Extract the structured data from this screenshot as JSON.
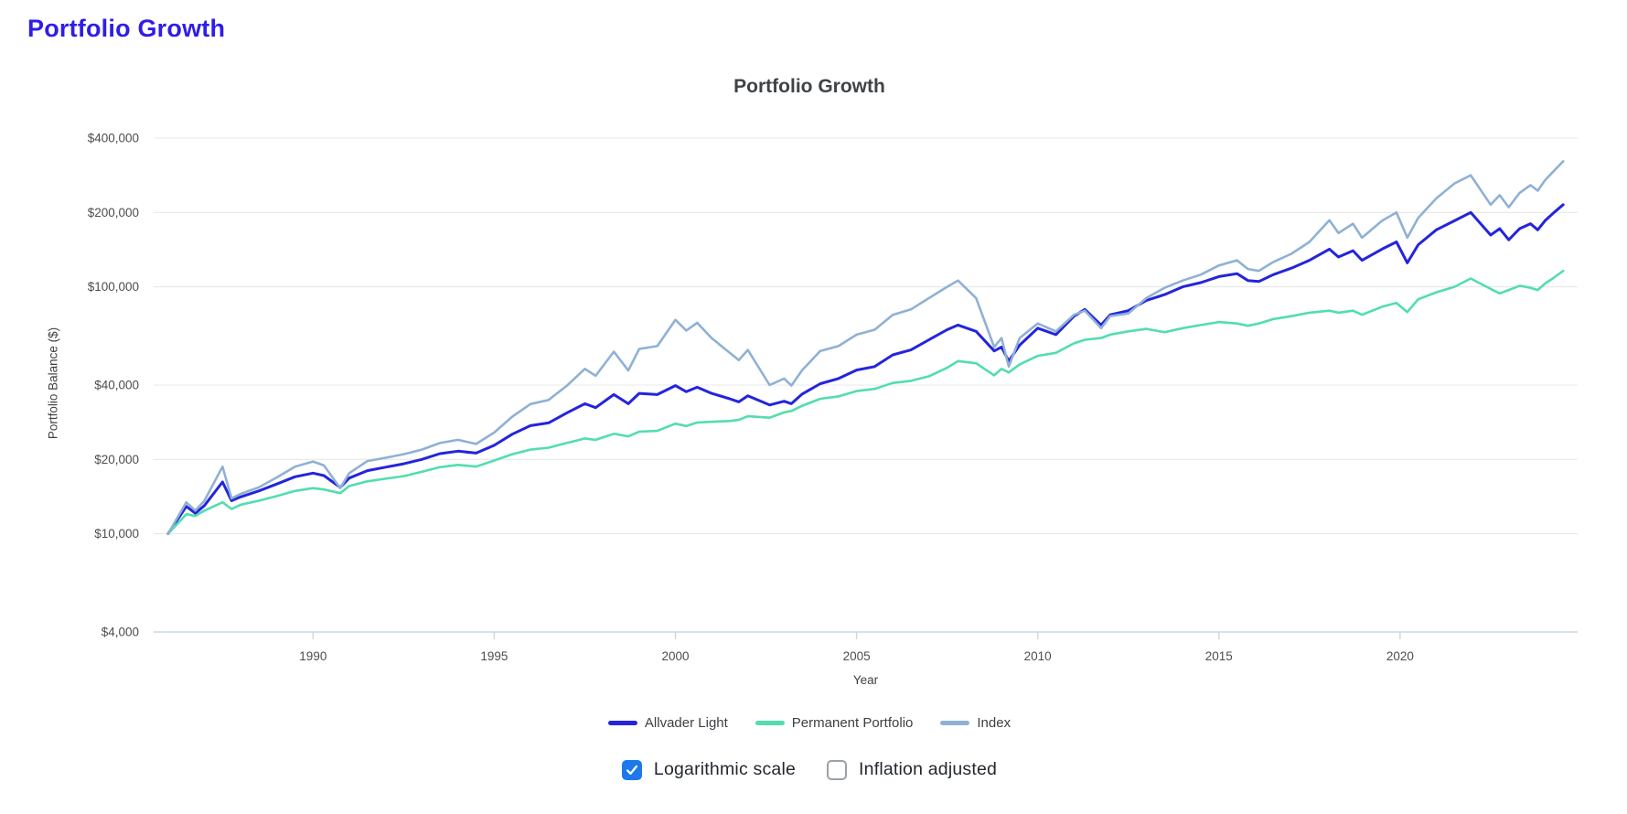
{
  "page": {
    "title": "Portfolio Growth"
  },
  "controls": {
    "log_scale": {
      "label": "Logarithmic scale",
      "checked": true
    },
    "inflation": {
      "label": "Inflation adjusted",
      "checked": false
    }
  },
  "chart_data": {
    "type": "line",
    "title": "Portfolio Growth",
    "xlabel": "Year",
    "ylabel": "Portfolio Balance ($)",
    "yscale": "log",
    "grid": true,
    "legend_position": "bottom",
    "ylim": [
      4000,
      400000
    ],
    "xlim": [
      1985.6,
      2024.9
    ],
    "yticks": [
      {
        "value": 400000,
        "label": "$400,000"
      },
      {
        "value": 200000,
        "label": "$200,000"
      },
      {
        "value": 100000,
        "label": "$100,000"
      },
      {
        "value": 40000,
        "label": "$40,000"
      },
      {
        "value": 20000,
        "label": "$20,000"
      },
      {
        "value": 10000,
        "label": "$10,000"
      },
      {
        "value": 4000,
        "label": "$4,000"
      }
    ],
    "xticks": [
      1990,
      1995,
      2000,
      2005,
      2010,
      2015,
      2020
    ],
    "x": [
      1986,
      1986.5,
      1986.75,
      1987,
      1987.5,
      1987.75,
      1988,
      1988.5,
      1989,
      1989.5,
      1990,
      1990.3,
      1990.75,
      1991,
      1991.5,
      1992,
      1992.5,
      1993,
      1993.5,
      1994,
      1994.5,
      1995,
      1995.5,
      1996,
      1996.5,
      1997,
      1997.5,
      1997.8,
      1998.3,
      1998.7,
      1999,
      1999.5,
      2000,
      2000.3,
      2000.6,
      2001,
      2001.5,
      2001.75,
      2002,
      2002.6,
      2003,
      2003.2,
      2003.5,
      2004,
      2004.5,
      2005,
      2005.5,
      2006,
      2006.5,
      2007,
      2007.5,
      2007.8,
      2008.3,
      2008.8,
      2009,
      2009.2,
      2009.5,
      2010,
      2010.5,
      2011,
      2011.3,
      2011.75,
      2012,
      2012.5,
      2013,
      2013.5,
      2014,
      2014.5,
      2015,
      2015.5,
      2015.8,
      2016.1,
      2016.5,
      2017,
      2017.5,
      2018.05,
      2018.3,
      2018.7,
      2018.95,
      2019.5,
      2019.9,
      2020.2,
      2020.5,
      2021,
      2021.5,
      2021.95,
      2022.5,
      2022.75,
      2023,
      2023.3,
      2023.6,
      2023.8,
      2024,
      2024.25,
      2024.5
    ],
    "series": [
      {
        "name": "Allvader Light",
        "color": "#2424dd",
        "width": 3,
        "values": [
          10000,
          12900,
          12100,
          13000,
          16200,
          13600,
          14100,
          14900,
          15900,
          17000,
          17600,
          17200,
          15400,
          16800,
          18000,
          18600,
          19200,
          20000,
          21100,
          21600,
          21200,
          22800,
          25300,
          27400,
          28100,
          30800,
          33600,
          32400,
          36600,
          33600,
          37000,
          36600,
          39800,
          37600,
          39200,
          37000,
          35200,
          34200,
          36200,
          33200,
          34400,
          33600,
          36800,
          40500,
          42500,
          46000,
          47500,
          53000,
          55500,
          61000,
          67000,
          70000,
          66000,
          55000,
          57000,
          50000,
          58000,
          68000,
          64000,
          76000,
          81000,
          70000,
          77000,
          80000,
          88000,
          93000,
          100000,
          104000,
          110000,
          113000,
          106000,
          105000,
          112000,
          119000,
          128000,
          142000,
          132000,
          140000,
          128000,
          142000,
          152000,
          125000,
          148000,
          170000,
          185000,
          200000,
          162000,
          172000,
          155000,
          172000,
          180000,
          170000,
          185000,
          200000,
          215000
        ]
      },
      {
        "name": "Permanent Portfolio",
        "color": "#52ddb0",
        "width": 2.6,
        "values": [
          10000,
          12000,
          11800,
          12400,
          13400,
          12600,
          13100,
          13600,
          14200,
          14900,
          15300,
          15100,
          14600,
          15600,
          16300,
          16700,
          17100,
          17800,
          18600,
          19000,
          18700,
          19800,
          21000,
          21900,
          22300,
          23300,
          24300,
          24000,
          25400,
          24800,
          25900,
          26100,
          27900,
          27300,
          28200,
          28400,
          28600,
          28900,
          29900,
          29500,
          31000,
          31400,
          33000,
          35200,
          36000,
          37800,
          38600,
          40800,
          41600,
          43400,
          47000,
          50000,
          49000,
          43800,
          46500,
          45000,
          48500,
          52500,
          54000,
          59000,
          61000,
          62000,
          64000,
          66000,
          67500,
          65500,
          68000,
          70000,
          72000,
          71000,
          69500,
          71000,
          74000,
          76000,
          78500,
          80000,
          78500,
          80000,
          77000,
          83000,
          86000,
          79000,
          89000,
          95000,
          100000,
          108000,
          98000,
          94000,
          97000,
          101000,
          99000,
          97000,
          103000,
          109000,
          116000
        ]
      },
      {
        "name": "Index",
        "color": "#8fb1d4",
        "width": 2.6,
        "values": [
          10000,
          13400,
          12400,
          13600,
          18700,
          13900,
          14500,
          15400,
          16900,
          18700,
          19600,
          18900,
          15300,
          17600,
          19700,
          20300,
          21000,
          21900,
          23300,
          24000,
          23100,
          25700,
          29800,
          33500,
          34800,
          39700,
          46500,
          43600,
          54600,
          45800,
          56000,
          57500,
          73500,
          66500,
          71500,
          62000,
          54000,
          50500,
          55500,
          40000,
          42500,
          39800,
          46000,
          55000,
          57500,
          64000,
          67000,
          77000,
          81000,
          90000,
          100000,
          106000,
          90000,
          57000,
          62000,
          47500,
          62000,
          71000,
          66000,
          77000,
          80000,
          68000,
          76000,
          78000,
          90000,
          99000,
          106000,
          112000,
          122000,
          128000,
          118000,
          116000,
          126000,
          136000,
          152000,
          186000,
          165000,
          180000,
          158000,
          185000,
          200000,
          158000,
          190000,
          228000,
          262000,
          283000,
          215000,
          235000,
          210000,
          240000,
          258000,
          245000,
          270000,
          295000,
          322000
        ]
      }
    ],
    "colors": {
      "gridline": "#e8e8e8",
      "axis_line": "#ccd6e4",
      "tick_label": "#4d4d4d"
    }
  }
}
